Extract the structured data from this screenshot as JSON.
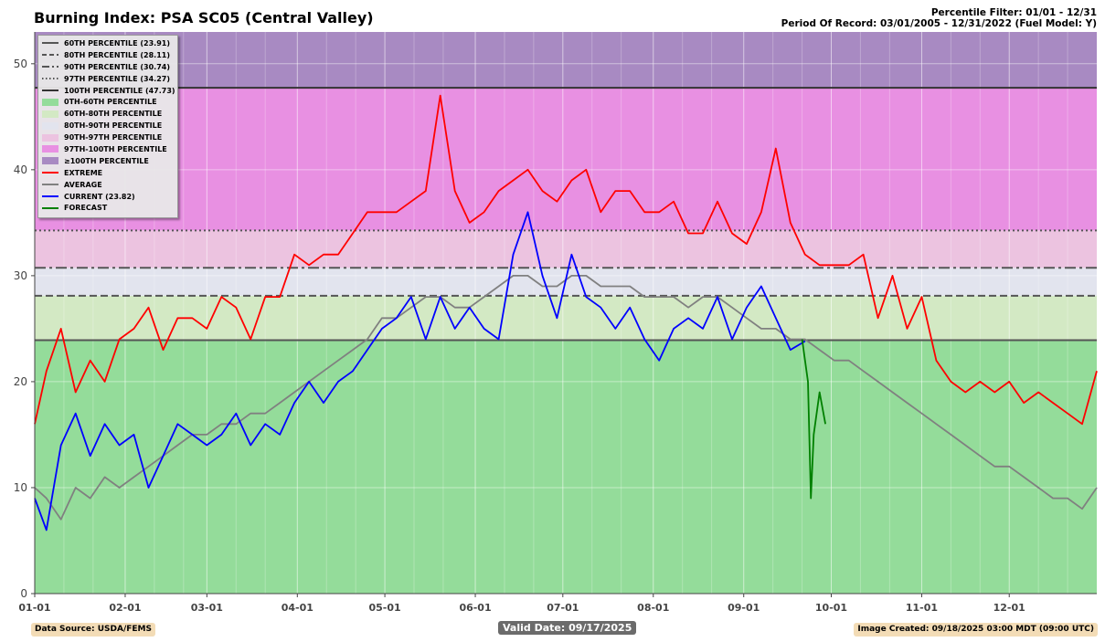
{
  "header": {
    "title": "Burning Index: PSA SC05 (Central Valley)",
    "percentile_filter": "Percentile Filter: 01/01 - 12/31",
    "period_of_record": "Period Of Record: 03/01/2005 - 12/31/2022 (Fuel Model: Y)"
  },
  "footer": {
    "source": "Data Source: USDA/FEMS",
    "valid_date": "Valid Date: 09/17/2025",
    "created": "Image Created: 09/18/2025 03:00 MDT (09:00 UTC)"
  },
  "legend": [
    {
      "label": "60TH PERCENTILE (23.91)",
      "kind": "line",
      "color": "#555555",
      "dash": ""
    },
    {
      "label": "80TH PERCENTILE (28.11)",
      "kind": "line",
      "color": "#555555",
      "dash": "5,3"
    },
    {
      "label": "90TH PERCENTILE (30.74)",
      "kind": "line",
      "color": "#555555",
      "dash": "8,3,2,3"
    },
    {
      "label": "97TH PERCENTILE (34.27)",
      "kind": "line",
      "color": "#555555",
      "dash": "1.5,2.5"
    },
    {
      "label": "100TH PERCENTILE (47.73)",
      "kind": "line",
      "color": "#333333",
      "dash": ""
    },
    {
      "label": "0TH-60TH PERCENTILE",
      "kind": "patch",
      "color": "#94dc9a"
    },
    {
      "label": "60TH-80TH PERCENTILE",
      "kind": "patch",
      "color": "#d3e9c4"
    },
    {
      "label": "80TH-90TH PERCENTILE",
      "kind": "patch",
      "color": "#e2e4ee"
    },
    {
      "label": "90TH-97TH PERCENTILE",
      "kind": "patch",
      "color": "#ecc3e0"
    },
    {
      "label": "97TH-100TH PERCENTILE",
      "kind": "patch",
      "color": "#e890e2"
    },
    {
      "label": "≥100TH PERCENTILE",
      "kind": "patch",
      "color": "#a88ac2"
    },
    {
      "label": "EXTREME",
      "kind": "line",
      "color": "#ff0000",
      "dash": ""
    },
    {
      "label": "AVERAGE",
      "kind": "line",
      "color": "#808080",
      "dash": ""
    },
    {
      "label": "CURRENT (23.82)",
      "kind": "line",
      "color": "#0000ff",
      "dash": ""
    },
    {
      "label": "FORECAST",
      "kind": "line",
      "color": "#008000",
      "dash": ""
    }
  ],
  "chart_data": {
    "type": "line",
    "ylim": [
      0,
      53
    ],
    "xlim": [
      1,
      365
    ],
    "yticks": [
      0,
      10,
      20,
      30,
      40,
      50
    ],
    "xtick_labels": [
      "01-01",
      "02-01",
      "03-01",
      "04-01",
      "05-01",
      "06-01",
      "07-01",
      "08-01",
      "09-01",
      "10-01",
      "11-01",
      "12-01"
    ],
    "xtick_days": [
      1,
      32,
      60,
      91,
      121,
      152,
      182,
      213,
      244,
      274,
      305,
      335
    ],
    "percentiles": {
      "p60": 23.91,
      "p80": 28.11,
      "p90": 30.74,
      "p97": 34.27,
      "p100": 47.73
    },
    "bands": [
      {
        "from": 0,
        "to": 23.91,
        "color": "#94dc9a"
      },
      {
        "from": 23.91,
        "to": 28.11,
        "color": "#d3e9c4"
      },
      {
        "from": 28.11,
        "to": 30.74,
        "color": "#e2e4ee"
      },
      {
        "from": 30.74,
        "to": 34.27,
        "color": "#ecc3e0"
      },
      {
        "from": 34.27,
        "to": 47.73,
        "color": "#e890e2"
      },
      {
        "from": 47.73,
        "to": 53,
        "color": "#a88ac2"
      }
    ],
    "grid": true,
    "series": [
      {
        "name": "EXTREME",
        "color": "#ff0000",
        "x": [
          1,
          5,
          10,
          15,
          20,
          25,
          30,
          35,
          40,
          45,
          50,
          55,
          60,
          65,
          70,
          75,
          80,
          85,
          90,
          95,
          100,
          105,
          110,
          115,
          120,
          125,
          130,
          135,
          140,
          145,
          150,
          155,
          160,
          165,
          170,
          175,
          180,
          185,
          190,
          195,
          200,
          205,
          210,
          215,
          220,
          225,
          230,
          235,
          240,
          245,
          250,
          255,
          260,
          265,
          270,
          275,
          280,
          285,
          290,
          295,
          300,
          305,
          310,
          315,
          320,
          325,
          330,
          335,
          340,
          345,
          350,
          355,
          360,
          365
        ],
        "values": [
          16,
          21,
          25,
          19,
          22,
          20,
          24,
          25,
          27,
          23,
          26,
          26,
          25,
          28,
          27,
          24,
          28,
          28,
          32,
          31,
          32,
          32,
          34,
          36,
          36,
          36,
          37,
          38,
          47,
          38,
          35,
          36,
          38,
          39,
          40,
          38,
          37,
          39,
          40,
          36,
          38,
          38,
          36,
          36,
          37,
          34,
          34,
          37,
          34,
          33,
          36,
          42,
          35,
          32,
          31,
          31,
          31,
          32,
          26,
          30,
          25,
          28,
          22,
          20,
          19,
          20,
          19,
          20,
          18,
          19,
          18,
          17,
          16,
          21
        ]
      },
      {
        "name": "AVERAGE",
        "color": "#808080",
        "x": [
          1,
          5,
          10,
          15,
          20,
          25,
          30,
          35,
          40,
          45,
          50,
          55,
          60,
          65,
          70,
          75,
          80,
          85,
          90,
          95,
          100,
          105,
          110,
          115,
          120,
          125,
          130,
          135,
          140,
          145,
          150,
          155,
          160,
          165,
          170,
          175,
          180,
          185,
          190,
          195,
          200,
          205,
          210,
          215,
          220,
          225,
          230,
          235,
          240,
          245,
          250,
          255,
          260,
          265,
          270,
          275,
          280,
          285,
          290,
          295,
          300,
          305,
          310,
          315,
          320,
          325,
          330,
          335,
          340,
          345,
          350,
          355,
          360,
          365
        ],
        "values": [
          10,
          9,
          7,
          10,
          9,
          11,
          10,
          11,
          12,
          13,
          14,
          15,
          15,
          16,
          16,
          17,
          17,
          18,
          19,
          20,
          21,
          22,
          23,
          24,
          26,
          26,
          27,
          28,
          28,
          27,
          27,
          28,
          29,
          30,
          30,
          29,
          29,
          30,
          30,
          29,
          29,
          29,
          28,
          28,
          28,
          27,
          28,
          28,
          27,
          26,
          25,
          25,
          24,
          24,
          23,
          22,
          22,
          21,
          20,
          19,
          18,
          17,
          16,
          15,
          14,
          13,
          12,
          12,
          11,
          10,
          9,
          9,
          8,
          10
        ]
      },
      {
        "name": "CURRENT (23.82)",
        "color": "#0000ff",
        "x": [
          1,
          5,
          10,
          15,
          20,
          25,
          30,
          35,
          40,
          45,
          50,
          55,
          60,
          65,
          70,
          75,
          80,
          85,
          90,
          95,
          100,
          105,
          110,
          115,
          120,
          125,
          130,
          135,
          140,
          145,
          150,
          155,
          160,
          165,
          170,
          175,
          180,
          185,
          190,
          195,
          200,
          205,
          210,
          215,
          220,
          225,
          230,
          235,
          240,
          245,
          250,
          255,
          260,
          265
        ],
        "values": [
          9,
          6,
          14,
          17,
          13,
          16,
          14,
          15,
          10,
          13,
          16,
          15,
          14,
          15,
          17,
          14,
          16,
          15,
          18,
          20,
          18,
          20,
          21,
          23,
          25,
          26,
          28,
          24,
          28,
          25,
          27,
          25,
          24,
          32,
          36,
          30,
          26,
          32,
          28,
          27,
          25,
          27,
          24,
          22,
          25,
          26,
          25,
          28,
          24,
          27,
          29,
          26,
          23,
          23.82
        ]
      },
      {
        "name": "FORECAST",
        "color": "#008000",
        "x": [
          264,
          266,
          267,
          268,
          270,
          272
        ],
        "values": [
          24,
          20,
          9,
          15,
          19,
          16
        ]
      }
    ]
  }
}
